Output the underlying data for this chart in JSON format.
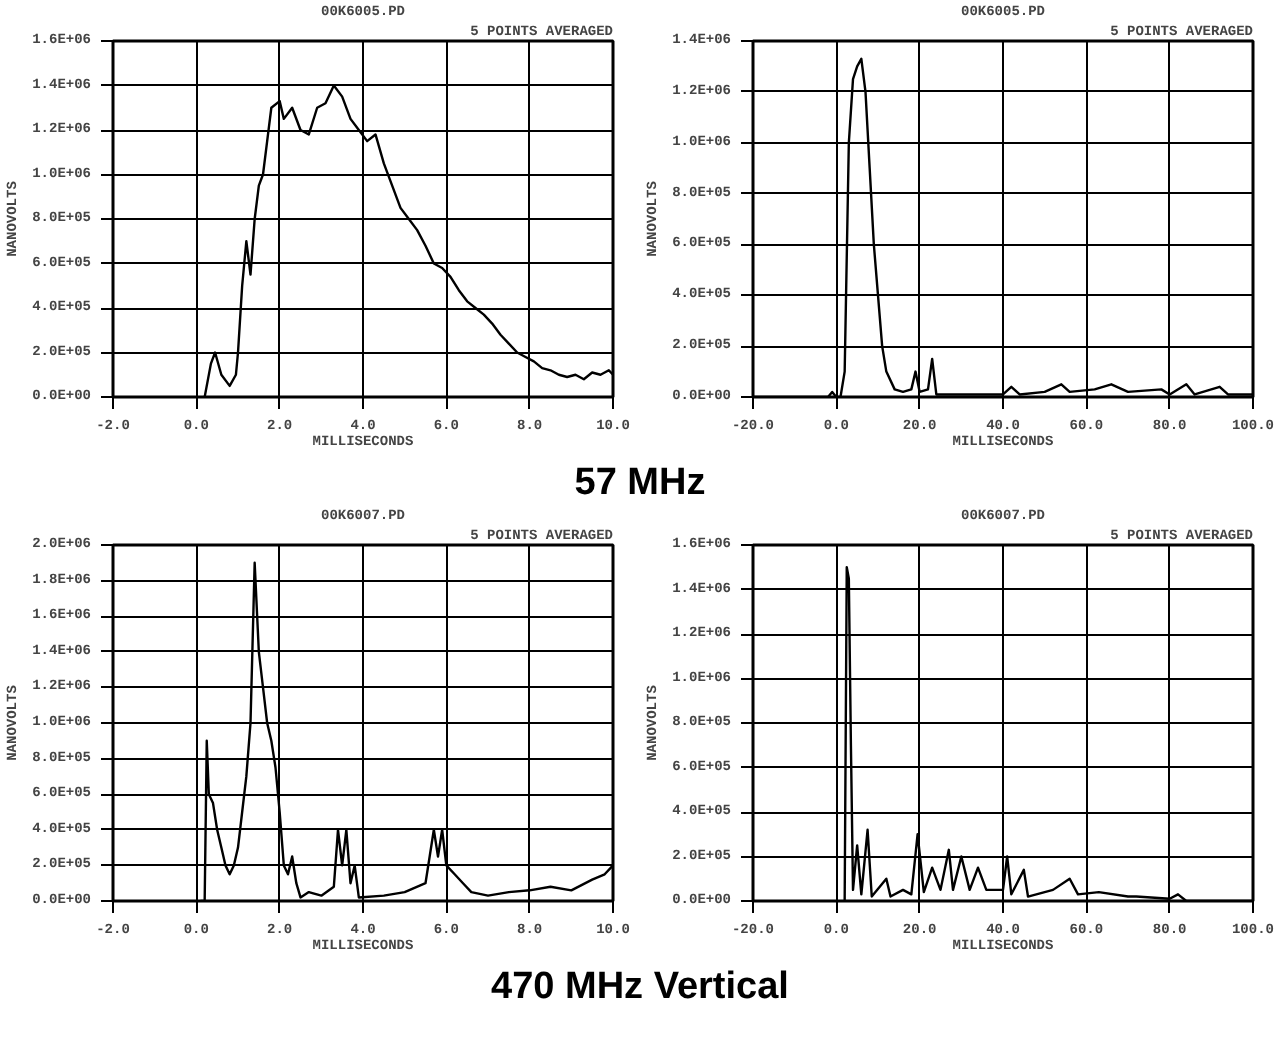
{
  "chart_data": [
    {
      "type": "line",
      "title": "00K6005.PD",
      "subtitle": "5 POINTS AVERAGED",
      "xlabel": "MILLISECONDS",
      "ylabel": "NANOVOLTS",
      "annotations": [
        "57 MHz"
      ],
      "grid": true,
      "marker": "none",
      "line_style": "solid",
      "xlim": [
        -2,
        10
      ],
      "ylim": [
        0,
        1600000
      ],
      "xticks": [
        {
          "value": -2,
          "label": "-2.0"
        },
        {
          "value": 0,
          "label": "0.0"
        },
        {
          "value": 2,
          "label": "2.0"
        },
        {
          "value": 4,
          "label": "4.0"
        },
        {
          "value": 6,
          "label": "6.0"
        },
        {
          "value": 8,
          "label": "8.0"
        },
        {
          "value": 10,
          "label": "10.0"
        }
      ],
      "yticks": [
        {
          "value": 0,
          "label": "0.0E+00"
        },
        {
          "value": 200000,
          "label": "2.0E+05"
        },
        {
          "value": 400000,
          "label": "4.0E+05"
        },
        {
          "value": 600000,
          "label": "6.0E+05"
        },
        {
          "value": 800000,
          "label": "8.0E+05"
        },
        {
          "value": 1000000,
          "label": "1.0E+06"
        },
        {
          "value": 1200000,
          "label": "1.2E+06"
        },
        {
          "value": 1400000,
          "label": "1.4E+06"
        },
        {
          "value": 1600000,
          "label": "1.6E+06"
        }
      ],
      "series": [
        {
          "color": "#000000",
          "x": [
            0.2,
            0.35,
            0.45,
            0.6,
            0.8,
            0.95,
            1.0,
            1.1,
            1.2,
            1.3,
            1.4,
            1.5,
            1.6,
            1.7,
            1.8,
            2.0,
            2.1,
            2.3,
            2.5,
            2.7,
            2.9,
            3.1,
            3.3,
            3.5,
            3.7,
            3.9,
            4.1,
            4.3,
            4.5,
            4.7,
            4.9,
            5.1,
            5.3,
            5.5,
            5.7,
            5.9,
            6.1,
            6.3,
            6.5,
            6.7,
            6.9,
            7.1,
            7.3,
            7.5,
            7.7,
            7.9,
            8.1,
            8.3,
            8.5,
            8.7,
            8.9,
            9.1,
            9.3,
            9.5,
            9.7,
            9.9,
            10.0
          ],
          "values": [
            0,
            150000,
            200000,
            100000,
            50000,
            100000,
            200000,
            500000,
            700000,
            550000,
            800000,
            950000,
            1000000,
            1150000,
            1300000,
            1330000,
            1250000,
            1300000,
            1200000,
            1180000,
            1300000,
            1320000,
            1400000,
            1350000,
            1250000,
            1200000,
            1150000,
            1180000,
            1050000,
            950000,
            850000,
            800000,
            750000,
            680000,
            600000,
            580000,
            540000,
            480000,
            430000,
            400000,
            370000,
            330000,
            280000,
            240000,
            200000,
            180000,
            160000,
            130000,
            120000,
            100000,
            90000,
            100000,
            80000,
            110000,
            100000,
            120000,
            100000
          ]
        }
      ]
    },
    {
      "type": "line",
      "title": "00K6005.PD",
      "subtitle": "5 POINTS AVERAGED",
      "xlabel": "MILLISECONDS",
      "ylabel": "NANOVOLTS",
      "grid": true,
      "marker": "none",
      "line_style": "solid",
      "xlim": [
        -20,
        100
      ],
      "ylim": [
        0,
        1400000
      ],
      "xticks": [
        {
          "value": -20,
          "label": "-20.0"
        },
        {
          "value": 0,
          "label": "0.0"
        },
        {
          "value": 20,
          "label": "20.0"
        },
        {
          "value": 40,
          "label": "40.0"
        },
        {
          "value": 60,
          "label": "60.0"
        },
        {
          "value": 80,
          "label": "80.0"
        },
        {
          "value": 100,
          "label": "100.0"
        }
      ],
      "yticks": [
        {
          "value": 0,
          "label": "0.0E+00"
        },
        {
          "value": 200000,
          "label": "2.0E+05"
        },
        {
          "value": 400000,
          "label": "4.0E+05"
        },
        {
          "value": 600000,
          "label": "6.0E+05"
        },
        {
          "value": 800000,
          "label": "8.0E+05"
        },
        {
          "value": 1000000,
          "label": "1.0E+06"
        },
        {
          "value": 1200000,
          "label": "1.2E+06"
        },
        {
          "value": 1400000,
          "label": "1.4E+06"
        }
      ],
      "series": [
        {
          "color": "#000000",
          "x": [
            -20,
            -2,
            -1,
            0,
            1,
            2,
            3,
            4,
            5,
            6,
            7,
            8,
            9,
            10,
            11,
            12,
            14,
            16,
            18,
            19,
            20,
            22,
            23,
            24,
            30,
            40,
            42,
            44,
            50,
            54,
            56,
            62,
            66,
            70,
            78,
            80,
            84,
            86,
            92,
            94,
            100
          ],
          "values": [
            0,
            0,
            20000,
            0,
            0,
            100000,
            1000000,
            1250000,
            1300000,
            1330000,
            1200000,
            900000,
            600000,
            400000,
            200000,
            100000,
            30000,
            20000,
            30000,
            100000,
            20000,
            30000,
            150000,
            10000,
            10000,
            10000,
            40000,
            10000,
            20000,
            50000,
            20000,
            30000,
            50000,
            20000,
            30000,
            10000,
            50000,
            10000,
            40000,
            10000,
            10000
          ]
        }
      ]
    },
    {
      "type": "line",
      "title": "00K6007.PD",
      "subtitle": "5 POINTS AVERAGED",
      "xlabel": "MILLISECONDS",
      "ylabel": "NANOVOLTS",
      "annotations": [
        "470 MHz Vertical"
      ],
      "grid": true,
      "marker": "none",
      "line_style": "solid",
      "xlim": [
        -2,
        10
      ],
      "ylim": [
        0,
        2000000
      ],
      "xticks": [
        {
          "value": -2,
          "label": "-2.0"
        },
        {
          "value": 0,
          "label": "0.0"
        },
        {
          "value": 2,
          "label": "2.0"
        },
        {
          "value": 4,
          "label": "4.0"
        },
        {
          "value": 6,
          "label": "6.0"
        },
        {
          "value": 8,
          "label": "8.0"
        },
        {
          "value": 10,
          "label": "10.0"
        }
      ],
      "yticks": [
        {
          "value": 0,
          "label": "0.0E+00"
        },
        {
          "value": 200000,
          "label": "2.0E+05"
        },
        {
          "value": 400000,
          "label": "4.0E+05"
        },
        {
          "value": 600000,
          "label": "6.0E+05"
        },
        {
          "value": 800000,
          "label": "8.0E+05"
        },
        {
          "value": 1000000,
          "label": "1.0E+06"
        },
        {
          "value": 1200000,
          "label": "1.2E+06"
        },
        {
          "value": 1400000,
          "label": "1.4E+06"
        },
        {
          "value": 1600000,
          "label": "1.6E+06"
        },
        {
          "value": 1800000,
          "label": "1.8E+06"
        },
        {
          "value": 2000000,
          "label": "2.0E+06"
        }
      ],
      "series": [
        {
          "color": "#000000",
          "x": [
            0.1,
            0.2,
            0.25,
            0.3,
            0.4,
            0.5,
            0.6,
            0.7,
            0.8,
            0.9,
            1.0,
            1.1,
            1.2,
            1.3,
            1.4,
            1.5,
            1.6,
            1.7,
            1.8,
            1.9,
            2.0,
            2.1,
            2.2,
            2.3,
            2.4,
            2.5,
            2.7,
            3.0,
            3.3,
            3.4,
            3.5,
            3.6,
            3.7,
            3.8,
            3.9,
            4.5,
            5.0,
            5.5,
            5.7,
            5.8,
            5.9,
            6.0,
            6.2,
            6.4,
            6.6,
            7.0,
            7.5,
            8.0,
            8.5,
            9.0,
            9.5,
            9.8,
            10.0
          ],
          "values": [
            0,
            0,
            900000,
            600000,
            550000,
            400000,
            300000,
            200000,
            150000,
            200000,
            300000,
            500000,
            700000,
            1000000,
            1900000,
            1400000,
            1200000,
            1000000,
            900000,
            750000,
            500000,
            200000,
            150000,
            250000,
            100000,
            20000,
            50000,
            30000,
            80000,
            400000,
            200000,
            400000,
            100000,
            200000,
            20000,
            30000,
            50000,
            100000,
            400000,
            250000,
            400000,
            200000,
            150000,
            100000,
            50000,
            30000,
            50000,
            60000,
            80000,
            60000,
            120000,
            150000,
            200000
          ]
        }
      ]
    },
    {
      "type": "line",
      "title": "00K6007.PD",
      "subtitle": "5 POINTS AVERAGED",
      "xlabel": "MILLISECONDS",
      "ylabel": "NANOVOLTS",
      "grid": true,
      "marker": "none",
      "line_style": "solid",
      "xlim": [
        -20,
        100
      ],
      "ylim": [
        0,
        1600000
      ],
      "xticks": [
        {
          "value": -20,
          "label": "-20.0"
        },
        {
          "value": 0,
          "label": "0.0"
        },
        {
          "value": 20,
          "label": "20.0"
        },
        {
          "value": 40,
          "label": "40.0"
        },
        {
          "value": 60,
          "label": "60.0"
        },
        {
          "value": 80,
          "label": "80.0"
        },
        {
          "value": 100,
          "label": "100.0"
        }
      ],
      "yticks": [
        {
          "value": 0,
          "label": "0.0E+00"
        },
        {
          "value": 200000,
          "label": "2.0E+05"
        },
        {
          "value": 400000,
          "label": "4.0E+05"
        },
        {
          "value": 600000,
          "label": "6.0E+05"
        },
        {
          "value": 800000,
          "label": "8.0E+05"
        },
        {
          "value": 1000000,
          "label": "1.0E+06"
        },
        {
          "value": 1200000,
          "label": "1.2E+06"
        },
        {
          "value": 1400000,
          "label": "1.4E+06"
        },
        {
          "value": 1600000,
          "label": "1.6E+06"
        }
      ],
      "series": [
        {
          "color": "#000000",
          "x": [
            2,
            2.5,
            3,
            3.5,
            4,
            5,
            6,
            7.5,
            8.5,
            12,
            13,
            16,
            18,
            19.5,
            21,
            23,
            25,
            27,
            28,
            30,
            32,
            34,
            36,
            40,
            41,
            42,
            45,
            46,
            52,
            56,
            58,
            63,
            70,
            72,
            80,
            82,
            84,
            100
          ],
          "values": [
            0,
            1500000,
            1450000,
            700000,
            50000,
            250000,
            30000,
            320000,
            20000,
            100000,
            20000,
            50000,
            30000,
            300000,
            40000,
            150000,
            50000,
            230000,
            50000,
            200000,
            50000,
            150000,
            50000,
            50000,
            200000,
            30000,
            140000,
            20000,
            50000,
            100000,
            30000,
            40000,
            20000,
            20000,
            10000,
            30000,
            0,
            0
          ]
        }
      ]
    }
  ]
}
